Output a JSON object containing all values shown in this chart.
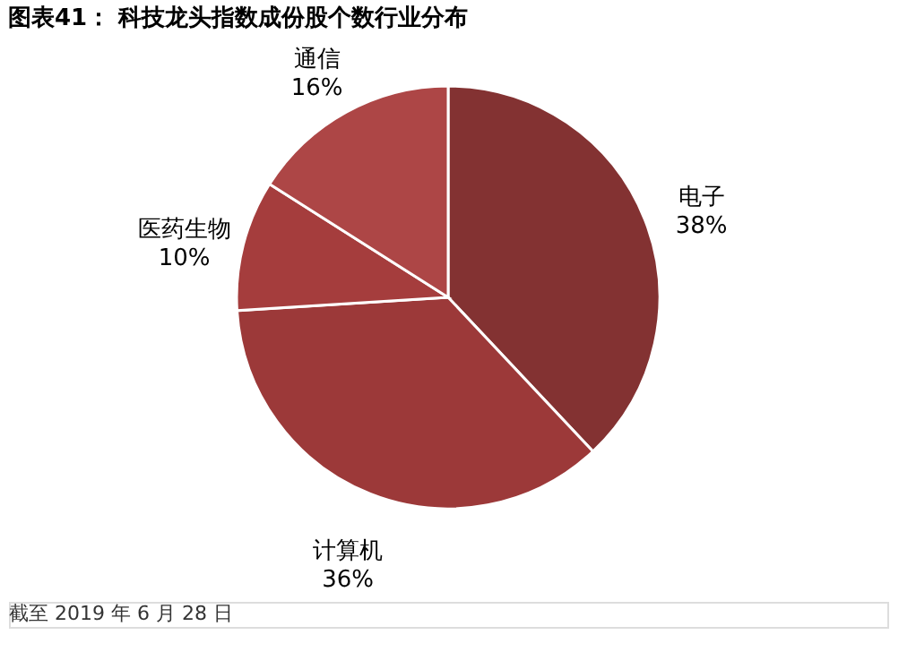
{
  "chart_data": {
    "type": "pie",
    "title": "图表41：  科技龙头指数成份股个数行业分布",
    "categories": [
      "电子",
      "计算机",
      "医药生物",
      "通信"
    ],
    "values": [
      38,
      36,
      10,
      16
    ],
    "value_labels": [
      "38%",
      "36%",
      "10%",
      "16%"
    ],
    "colors": [
      "#833232",
      "#9c3939",
      "#a53d3d",
      "#ad4646"
    ],
    "legend": false,
    "annotations": [
      "截至 2019 年 6 月 28 日"
    ]
  }
}
